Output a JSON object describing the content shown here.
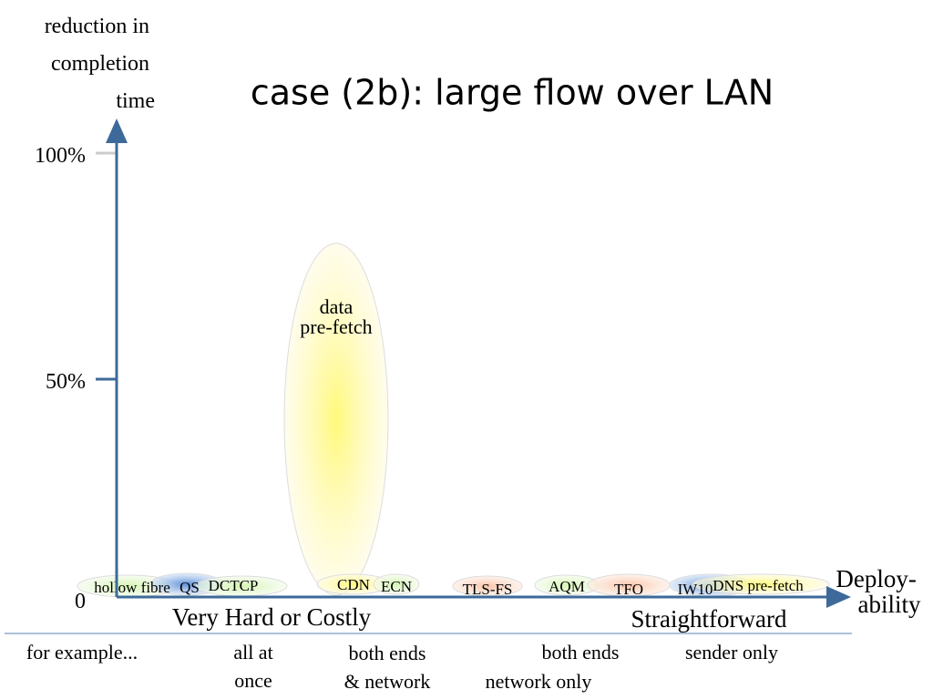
{
  "title": "case (2b): large flow over LAN",
  "y_axis": {
    "label": [
      "reduction in",
      "completion",
      "time"
    ],
    "ticks": [
      "100%",
      "50%",
      "0"
    ]
  },
  "x_axis": {
    "label": [
      "Deploy-",
      "ability"
    ],
    "left_end": "Very Hard or Costly",
    "right_end": "Straightforward"
  },
  "items": [
    {
      "label": [
        "hollow fibre"
      ]
    },
    {
      "label": [
        "QS"
      ]
    },
    {
      "label": [
        "DCTCP"
      ]
    },
    {
      "label": [
        "data",
        "pre-fetch"
      ]
    },
    {
      "label": [
        "CDN"
      ]
    },
    {
      "label": [
        "ECN"
      ]
    },
    {
      "label": [
        "TLS-FS"
      ]
    },
    {
      "label": [
        "AQM"
      ]
    },
    {
      "label": [
        "TFO"
      ]
    },
    {
      "label": [
        "IW10"
      ]
    },
    {
      "label": [
        "DNS pre-fetch"
      ]
    }
  ],
  "footer": [
    {
      "text": [
        "for example..."
      ]
    },
    {
      "text": [
        "all at",
        "once"
      ]
    },
    {
      "text": [
        "both ends",
        "& network"
      ]
    },
    {
      "text": [
        "both ends"
      ]
    },
    {
      "text": [
        "network only"
      ]
    },
    {
      "text": [
        "sender only"
      ]
    }
  ]
}
